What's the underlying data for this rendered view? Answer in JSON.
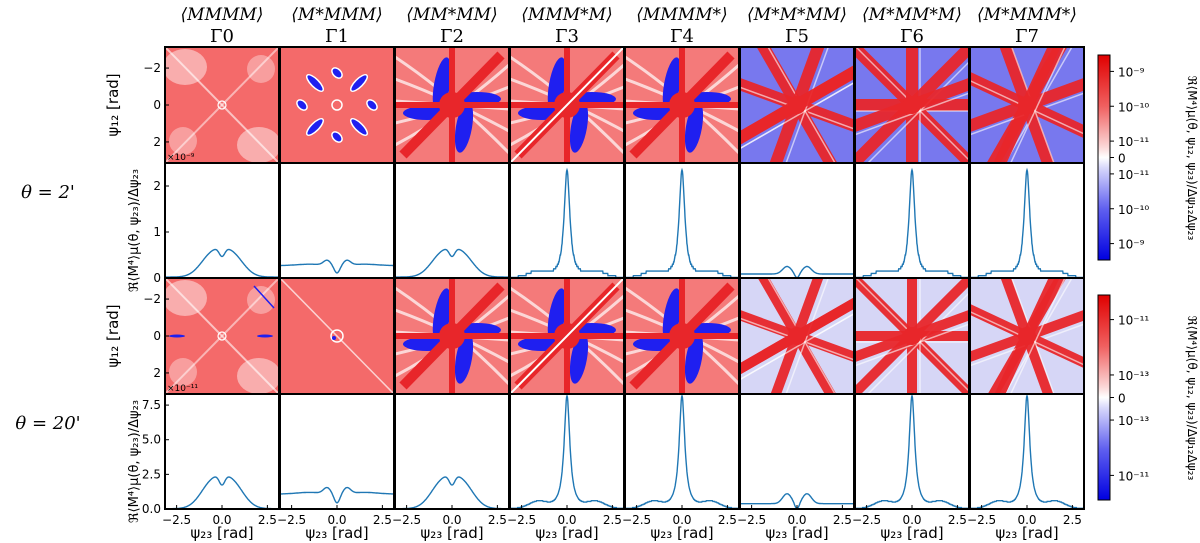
{
  "chart_data": {
    "type": "heatmap",
    "title": "",
    "columns": [
      {
        "moment": "⟨MMMM⟩",
        "gamma": "Γ0"
      },
      {
        "moment": "⟨M*MMM⟩",
        "gamma": "Γ1"
      },
      {
        "moment": "⟨MM*MM⟩",
        "gamma": "Γ2"
      },
      {
        "moment": "⟨MMM*M⟩",
        "gamma": "Γ3"
      },
      {
        "moment": "⟨MMMM*⟩",
        "gamma": "Γ4"
      },
      {
        "moment": "⟨M*M*MM⟩",
        "gamma": "Γ5"
      },
      {
        "moment": "⟨M*MM*M⟩",
        "gamma": "Γ6"
      },
      {
        "moment": "⟨M*MMM*⟩",
        "gamma": "Γ7"
      }
    ],
    "rows": [
      {
        "theta_label": "θ = 2'",
        "heatmap_scale": "×10⁻⁹",
        "line_yticks": [
          "0",
          "1",
          "2"
        ],
        "line_ylim": [
          0,
          2.5
        ],
        "peaks": [
          0.55,
          0.3,
          0.55,
          2.3,
          2.3,
          0.25,
          2.3,
          2.3
        ]
      },
      {
        "theta_label": "θ = 20'",
        "heatmap_scale": "×10⁻¹¹",
        "line_yticks": [
          "0.0",
          "2.5",
          "5.0",
          "7.5"
        ],
        "line_ylim": [
          0,
          8.3
        ],
        "peaks": [
          2.1,
          1.2,
          2.1,
          8.0,
          8.0,
          1.1,
          8.0,
          8.0
        ]
      }
    ],
    "heatmap_ylabel": "ψ₁₂ [rad]",
    "heatmap_yticks": [
      "−2",
      "0",
      "2"
    ],
    "heatmap_ylim": [
      3.14,
      -3.14
    ],
    "line_ylabel": "ℜ⟨M⁴⟩μ(θ, ψ₂₃)/Δψ₂₃",
    "xlabel": "ψ₂₃ [rad]",
    "xticks": [
      "−2.5",
      "0.0",
      "2.5"
    ],
    "xlim": [
      -3.14,
      3.14
    ],
    "colorbar_label": "ℜ⟨M⁴⟩μ(θ, ψ₁₂, ψ₂₃)/Δψ₁₂Δψ₂₃",
    "colorbar1_ticks": [
      "10⁻⁹",
      "10⁻¹⁰",
      "10⁻¹¹",
      "0",
      "10⁻¹¹",
      "10⁻¹⁰",
      "10⁻⁹"
    ],
    "colorbar2_ticks": [
      "10⁻¹¹",
      "10⁻¹³",
      "0",
      "10⁻¹³",
      "10⁻¹¹"
    ],
    "colors": {
      "positive": "#e8262a",
      "negative": "#1f1ff0",
      "zero": "#ffffff",
      "line": "#1f77b4"
    }
  }
}
